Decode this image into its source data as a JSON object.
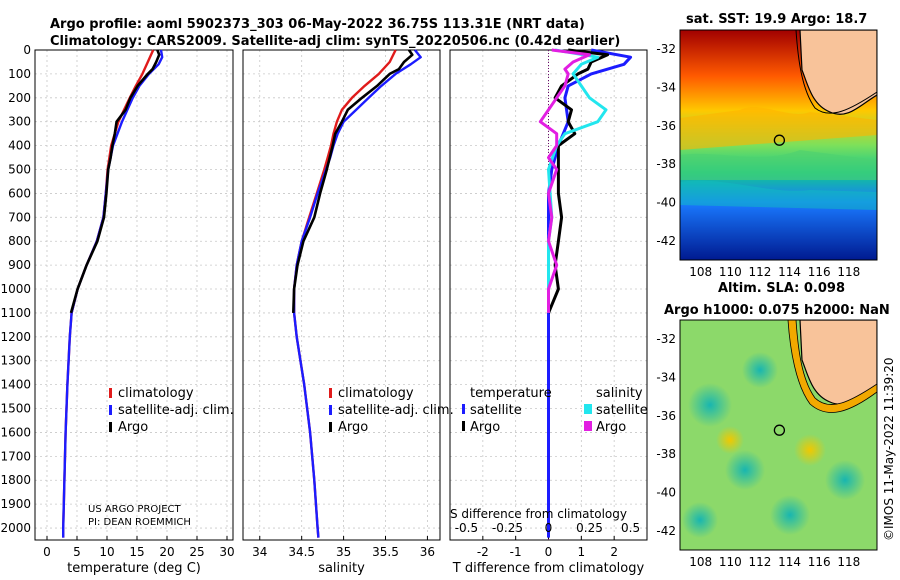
{
  "header": {
    "title_line1": "Argo profile: aoml 5902373_303 06-May-2022 36.75S 113.31E (NRT data)",
    "title_line2": "Climatology: CARS2009. Satellite-adj clim: synTS_20220506.nc (0.42d earlier)"
  },
  "depth_ticks": [
    "0",
    "100",
    "200",
    "300",
    "400",
    "500",
    "600",
    "700",
    "800",
    "900",
    "1000",
    "1100",
    "1200",
    "1300",
    "1400",
    "1500",
    "1600",
    "1700",
    "1800",
    "1900",
    "2000"
  ],
  "colors": {
    "climatology": "#e01b1b",
    "satellite": "#1c1cff",
    "argo": "#000000",
    "sat_s": "#22e6ee",
    "argo_s": "#e21ee2"
  },
  "chart_data": [
    {
      "type": "line",
      "title": "",
      "xlabel": "temperature (deg C)",
      "ylabel": "depth",
      "xlim": [
        -2,
        31
      ],
      "ylim": [
        2050,
        0
      ],
      "xticks": [
        0,
        5,
        10,
        15,
        20,
        25,
        30
      ],
      "legend": [
        "climatology",
        "satellite-adj. clim.",
        "Argo"
      ],
      "series": [
        {
          "name": "climatology",
          "depth": [
            0,
            50,
            100,
            150,
            200,
            300,
            400,
            500,
            600,
            700,
            800,
            900,
            1000,
            1100,
            1200,
            1400,
            1600,
            1800,
            2000,
            2040
          ],
          "values": [
            17.7,
            16.8,
            15.9,
            14.8,
            13.8,
            11.9,
            10.7,
            10.1,
            9.8,
            9.4,
            8.3,
            6.6,
            5.1,
            4.1,
            3.8,
            3.4,
            3.1,
            2.9,
            2.7,
            2.7
          ]
        },
        {
          "name": "satellite-adj. clim.",
          "depth": [
            0,
            30,
            60,
            100,
            150,
            200,
            300,
            400,
            500,
            600,
            700,
            800,
            900,
            1000,
            1100,
            1200,
            1400,
            1600,
            1800,
            2000,
            2040
          ],
          "values": [
            19.0,
            19.2,
            18.6,
            17.0,
            15.4,
            14.3,
            12.5,
            11.0,
            10.2,
            9.8,
            9.4,
            8.3,
            6.6,
            5.1,
            4.1,
            3.8,
            3.4,
            3.1,
            2.9,
            2.7,
            2.7
          ]
        },
        {
          "name": "Argo",
          "depth": [
            0,
            20,
            50,
            80,
            100,
            150,
            200,
            250,
            300,
            350,
            400,
            450,
            500,
            600,
            700,
            800,
            900,
            1000,
            1100
          ],
          "values": [
            18.4,
            18.7,
            18.2,
            17.6,
            16.8,
            15.1,
            13.9,
            13.1,
            11.6,
            11.3,
            10.9,
            10.6,
            10.2,
            9.9,
            9.5,
            8.4,
            6.6,
            5.1,
            4.0
          ]
        }
      ]
    },
    {
      "type": "line",
      "title": "",
      "xlabel": "salinity",
      "ylabel": "depth",
      "xlim": [
        33.8,
        36.15
      ],
      "ylim": [
        2050,
        0
      ],
      "xticks": [
        34,
        34.5,
        35,
        35.5,
        36
      ],
      "legend": [
        "climatology",
        "satellite-adj. clim.",
        "Argo"
      ],
      "series": [
        {
          "name": "climatology",
          "depth": [
            0,
            50,
            100,
            150,
            200,
            250,
            300,
            350,
            400,
            450,
            500,
            600,
            700,
            800,
            900,
            1000,
            1100,
            1200,
            1400,
            1600,
            1800,
            2000,
            2040
          ],
          "values": [
            35.62,
            35.55,
            35.42,
            35.25,
            35.1,
            34.98,
            34.92,
            34.88,
            34.85,
            34.81,
            34.77,
            34.68,
            34.59,
            34.5,
            34.44,
            34.41,
            34.41,
            34.44,
            34.53,
            34.6,
            34.65,
            34.69,
            34.7
          ]
        },
        {
          "name": "satellite-adj. clim.",
          "depth": [
            0,
            30,
            60,
            100,
            150,
            200,
            250,
            300,
            350,
            400,
            450,
            500,
            600,
            700,
            800,
            900,
            1000,
            1100,
            1200,
            1400,
            1600,
            1800,
            2000,
            2040
          ],
          "values": [
            35.85,
            35.92,
            35.8,
            35.62,
            35.45,
            35.3,
            35.15,
            35.0,
            34.93,
            34.88,
            34.84,
            34.79,
            34.69,
            34.6,
            34.5,
            34.44,
            34.41,
            34.41,
            34.44,
            34.53,
            34.6,
            34.65,
            34.69,
            34.7
          ]
        },
        {
          "name": "Argo",
          "depth": [
            0,
            20,
            50,
            80,
            100,
            150,
            200,
            250,
            300,
            350,
            400,
            500,
            600,
            700,
            800,
            900,
            1000,
            1100
          ],
          "values": [
            35.78,
            35.82,
            35.72,
            35.66,
            35.55,
            35.4,
            35.22,
            35.05,
            34.98,
            34.9,
            34.87,
            34.8,
            34.72,
            34.65,
            34.52,
            34.45,
            34.41,
            34.4
          ]
        }
      ]
    },
    {
      "type": "line",
      "title": "",
      "xlabel": "T difference from climatology",
      "ylabel": "depth",
      "xlim": [
        -3,
        3
      ],
      "ylim": [
        2050,
        0
      ],
      "xticks": [
        -2,
        -1,
        0,
        1,
        2
      ],
      "xlabel2": "S difference from climatology",
      "xticks2": [
        "-0.5",
        "-0.25",
        "0",
        "0.25",
        "0.5"
      ],
      "legend_titles": [
        "temperature",
        "salinity"
      ],
      "legend": [
        "satellite",
        "Argo",
        "satellite",
        "Argo"
      ],
      "series": [
        {
          "name": "temperature satellite",
          "depth": [
            0,
            30,
            60,
            100,
            150,
            200,
            300,
            400,
            500,
            600,
            700,
            800,
            900,
            1000,
            1100,
            1200,
            1600,
            2040
          ],
          "values": [
            1.3,
            2.5,
            2.3,
            1.3,
            0.6,
            0.5,
            0.6,
            0.3,
            0.1,
            0,
            0,
            0,
            0,
            0,
            0,
            0,
            0,
            0
          ]
        },
        {
          "name": "temperature Argo",
          "depth": [
            0,
            20,
            50,
            80,
            100,
            150,
            200,
            250,
            300,
            350,
            400,
            450,
            500,
            600,
            700,
            800,
            900,
            1000,
            1100
          ],
          "values": [
            0.6,
            1.8,
            1.3,
            1.2,
            0.9,
            0.4,
            0.2,
            0.7,
            0.6,
            0.8,
            0.3,
            0.3,
            0.3,
            0.3,
            0.4,
            0.3,
            0.2,
            0.3,
            0.0
          ]
        },
        {
          "name": "salinity satellite",
          "depth": [
            0,
            30,
            60,
            100,
            150,
            200,
            250,
            300,
            350,
            400,
            500,
            600,
            700,
            800,
            900,
            1000,
            1100
          ],
          "values": [
            0.04,
            0.3,
            0.2,
            0.15,
            0.2,
            0.25,
            0.35,
            0.3,
            0.1,
            0.05,
            0.0,
            0.01,
            0.02,
            0.0,
            0.0,
            0.0,
            0.0
          ]
        },
        {
          "name": "salinity Argo",
          "depth": [
            0,
            20,
            50,
            80,
            100,
            150,
            200,
            250,
            300,
            350,
            400,
            450,
            500,
            600,
            700,
            800,
            900,
            1000,
            1100
          ],
          "values": [
            0.02,
            0.25,
            0.15,
            0.1,
            0.12,
            0.1,
            0.05,
            0.0,
            -0.05,
            0.05,
            0.05,
            0.0,
            0.05,
            0.0,
            0.02,
            0.0,
            0.05,
            0.0,
            0.0
          ]
        }
      ]
    },
    {
      "type": "heatmap",
      "title": "sat. SST: 19.9 Argo: 18.7",
      "xticks": [
        "108",
        "110",
        "112",
        "114",
        "116",
        "118"
      ],
      "yticks": [
        "-32",
        "-34",
        "-36",
        "-38",
        "-40",
        "-42"
      ],
      "marker": {
        "lon": 113.31,
        "lat": -36.75
      }
    },
    {
      "type": "heatmap",
      "title_line1": "Altim. SLA: 0.098",
      "title_line2": "Argo h1000: 0.075 h2000: NaN",
      "xticks": [
        "108",
        "110",
        "112",
        "114",
        "116",
        "118"
      ],
      "yticks": [
        "-32",
        "-34",
        "-36",
        "-38",
        "-40",
        "-42"
      ],
      "marker": {
        "lon": 113.31,
        "lat": -36.75
      }
    }
  ],
  "profile_legend": [
    "climatology",
    "satellite-adj. clim.",
    "Argo"
  ],
  "credits": {
    "line1": "US ARGO PROJECT",
    "line2": "PI: DEAN ROEMMICH"
  },
  "side_stamp": "©IMOS 11-May-2022 11:39:20"
}
